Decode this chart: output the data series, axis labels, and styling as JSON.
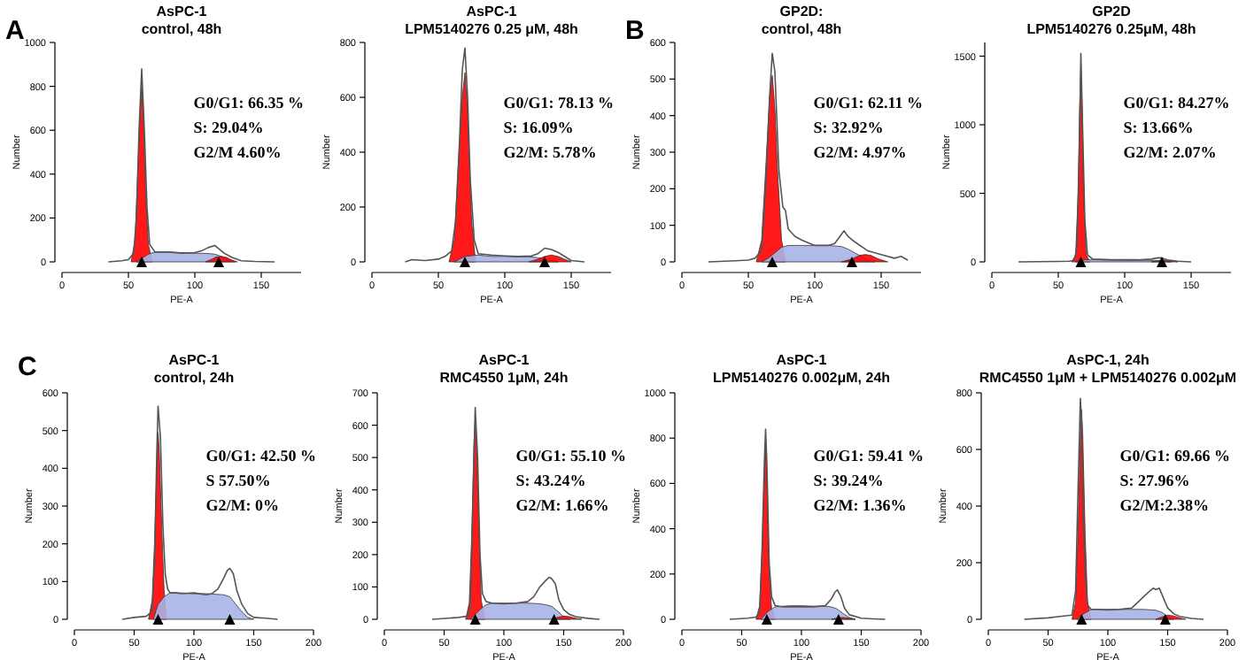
{
  "chart_data": [
    {
      "type": "area",
      "title": "AsPC-1",
      "subtitle": "control, 48h",
      "xlabel": "PE-A",
      "ylabel": "Number",
      "xlim": [
        0,
        180
      ],
      "xticks": [
        0,
        50,
        100,
        150
      ],
      "ylim": [
        0,
        1000
      ],
      "yticks": [
        0,
        200,
        400,
        600,
        800,
        1000
      ],
      "annotations": [
        "A",
        "G0/G1: 66.35 %",
        "S: 29.04%",
        "G2/M 4.60%"
      ],
      "series": [
        {
          "type": "line",
          "color": "#555555",
          "x": [
            35,
            45,
            50,
            54,
            56,
            58,
            60,
            62,
            64,
            66,
            70,
            80,
            90,
            100,
            105,
            110,
            115,
            118,
            122,
            128,
            135,
            145,
            160
          ],
          "values": [
            0,
            5,
            10,
            40,
            200,
            600,
            880,
            600,
            250,
            80,
            45,
            45,
            40,
            42,
            50,
            65,
            75,
            60,
            40,
            20,
            5,
            2,
            0
          ]
        },
        {
          "color": "#ff0000",
          "x": [
            52,
            55,
            57,
            59,
            60,
            61,
            63,
            65,
            68
          ],
          "values": [
            0,
            100,
            400,
            700,
            800,
            700,
            300,
            80,
            0
          ]
        },
        {
          "color": "#a8b4e8",
          "x": [
            56,
            60,
            65,
            70,
            80,
            90,
            100,
            110,
            115,
            120,
            125,
            130
          ],
          "values": [
            0,
            15,
            35,
            45,
            45,
            42,
            40,
            38,
            35,
            25,
            10,
            0
          ]
        },
        {
          "color": "#ff0000",
          "x": [
            108,
            112,
            116,
            120,
            124,
            128,
            132
          ],
          "values": [
            0,
            10,
            22,
            25,
            20,
            8,
            0
          ]
        },
        {
          "type": "scatter",
          "marker": "triangle",
          "color": "#000000",
          "x": [
            60,
            118
          ],
          "values": [
            0,
            0
          ]
        }
      ]
    },
    {
      "type": "area",
      "title": "AsPC-1",
      "subtitle": "LPM5140276  0.25 μM, 48h",
      "xlabel": "PE-A",
      "ylabel": "Number",
      "xlim": [
        0,
        180
      ],
      "xticks": [
        0,
        50,
        100,
        150
      ],
      "ylim": [
        0,
        800
      ],
      "yticks": [
        0,
        200,
        400,
        600,
        800
      ],
      "annotations": [
        "G0/G1: 78.13 %",
        "S: 16.09%",
        "G2/M: 5.78%"
      ],
      "series": [
        {
          "type": "line",
          "color": "#555555",
          "x": [
            25,
            30,
            40,
            50,
            55,
            60,
            63,
            66,
            68,
            70,
            72,
            74,
            77,
            80,
            90,
            100,
            110,
            120,
            125,
            130,
            135,
            140,
            145,
            150,
            160
          ],
          "values": [
            0,
            8,
            5,
            10,
            20,
            40,
            150,
            450,
            700,
            780,
            600,
            300,
            80,
            30,
            25,
            22,
            20,
            22,
            30,
            50,
            45,
            35,
            20,
            5,
            0
          ]
        },
        {
          "color": "#ff0000",
          "x": [
            58,
            62,
            65,
            68,
            70,
            72,
            75,
            78
          ],
          "values": [
            0,
            80,
            350,
            600,
            690,
            550,
            150,
            0
          ]
        },
        {
          "color": "#a8b4e8",
          "x": [
            62,
            70,
            80,
            90,
            100,
            110,
            120,
            125,
            130,
            135,
            140
          ],
          "values": [
            0,
            20,
            25,
            20,
            20,
            18,
            18,
            15,
            10,
            5,
            0
          ]
        },
        {
          "color": "#ff0000",
          "x": [
            118,
            125,
            130,
            135,
            140,
            145,
            150
          ],
          "values": [
            0,
            10,
            20,
            25,
            20,
            10,
            0
          ]
        },
        {
          "type": "scatter",
          "marker": "triangle",
          "color": "#000000",
          "x": [
            70,
            130
          ],
          "values": [
            0,
            0
          ]
        }
      ]
    },
    {
      "type": "area",
      "title": "GP2D:",
      "subtitle": "control, 48h",
      "xlabel": "PE-A",
      "ylabel": "Number",
      "xlim": [
        0,
        180
      ],
      "xticks": [
        0,
        50,
        100,
        150
      ],
      "ylim": [
        0,
        600
      ],
      "yticks": [
        0,
        100,
        200,
        300,
        400,
        500,
        600
      ],
      "annotations": [
        "B",
        "G0/G1: 62.11 %",
        "S: 32.92%",
        "G2/M: 4.97%"
      ],
      "series": [
        {
          "type": "line",
          "color": "#555555",
          "x": [
            20,
            40,
            50,
            55,
            60,
            63,
            66,
            68,
            70,
            73,
            76,
            78,
            80,
            85,
            90,
            100,
            110,
            115,
            120,
            122,
            125,
            130,
            140,
            150,
            160,
            165,
            170
          ],
          "values": [
            0,
            3,
            5,
            10,
            30,
            200,
            450,
            570,
            520,
            250,
            150,
            140,
            90,
            70,
            60,
            45,
            45,
            50,
            75,
            85,
            70,
            55,
            30,
            20,
            10,
            15,
            5
          ]
        },
        {
          "color": "#ff0000",
          "x": [
            56,
            60,
            63,
            66,
            68,
            70,
            72,
            75,
            78
          ],
          "values": [
            0,
            60,
            250,
            450,
            510,
            420,
            250,
            60,
            0
          ]
        },
        {
          "color": "#a8b4e8",
          "x": [
            60,
            65,
            70,
            75,
            80,
            90,
            100,
            110,
            120,
            125,
            130,
            135,
            140,
            145
          ],
          "values": [
            0,
            10,
            25,
            40,
            45,
            45,
            45,
            45,
            42,
            35,
            25,
            15,
            5,
            0
          ]
        },
        {
          "color": "#ff0000",
          "x": [
            120,
            128,
            134,
            138,
            142,
            148,
            155
          ],
          "values": [
            0,
            8,
            18,
            20,
            18,
            8,
            0
          ]
        },
        {
          "type": "scatter",
          "marker": "triangle",
          "color": "#000000",
          "x": [
            68,
            128
          ],
          "values": [
            0,
            0
          ]
        }
      ]
    },
    {
      "type": "area",
      "title": "GP2D",
      "subtitle": "LPM5140276  0.25μM, 48h",
      "xlabel": "PE-A",
      "ylabel": "Number",
      "xlim": [
        0,
        180
      ],
      "xticks": [
        0,
        50,
        100,
        150
      ],
      "ylim": [
        0,
        1600
      ],
      "yticks": [
        0,
        500,
        1000,
        1500
      ],
      "annotations": [
        "G0/G1: 84.27%",
        "S: 13.66%",
        "G2/M: 2.07%"
      ],
      "series": [
        {
          "type": "line",
          "color": "#555555",
          "x": [
            20,
            50,
            58,
            62,
            64,
            66,
            67,
            68,
            70,
            72,
            76,
            90,
            110,
            120,
            125,
            128,
            132,
            140,
            150
          ],
          "values": [
            0,
            3,
            5,
            10,
            100,
            900,
            1520,
            1100,
            300,
            50,
            20,
            15,
            15,
            20,
            30,
            28,
            15,
            5,
            0
          ]
        },
        {
          "color": "#ff0000",
          "x": [
            60,
            63,
            65,
            66,
            67,
            68,
            69,
            71,
            74
          ],
          "values": [
            0,
            50,
            500,
            1100,
            1450,
            1100,
            500,
            50,
            0
          ]
        },
        {
          "color": "#a8b4e8",
          "x": [
            63,
            70,
            80,
            100,
            115,
            125,
            130,
            135
          ],
          "values": [
            0,
            15,
            15,
            12,
            12,
            10,
            5,
            0
          ]
        },
        {
          "color": "#ff0000",
          "x": [
            120,
            125,
            130,
            135,
            140
          ],
          "values": [
            0,
            8,
            12,
            8,
            0
          ]
        },
        {
          "type": "scatter",
          "marker": "triangle",
          "color": "#000000",
          "x": [
            67,
            128
          ],
          "values": [
            0,
            0
          ]
        }
      ]
    },
    {
      "type": "area",
      "title": "AsPC-1",
      "subtitle": "control, 24h",
      "xlabel": "PE-A",
      "ylabel": "Number",
      "xlim": [
        0,
        200
      ],
      "xticks": [
        0,
        50,
        100,
        150,
        200
      ],
      "ylim": [
        0,
        600
      ],
      "yticks": [
        0,
        100,
        200,
        300,
        400,
        500,
        600
      ],
      "annotations": [
        "C",
        "G0/G1: 42.50 %",
        "S 57.50%",
        "G2/M: 0%"
      ],
      "series": [
        {
          "type": "line",
          "color": "#555555",
          "x": [
            40,
            50,
            60,
            65,
            67,
            69,
            70,
            72,
            74,
            76,
            78,
            80,
            85,
            90,
            100,
            110,
            115,
            120,
            125,
            128,
            130,
            133,
            136,
            140,
            145,
            150,
            160,
            170
          ],
          "values": [
            0,
            5,
            8,
            20,
            150,
            450,
            565,
            480,
            250,
            120,
            80,
            70,
            70,
            68,
            70,
            65,
            68,
            80,
            110,
            130,
            135,
            120,
            75,
            40,
            15,
            5,
            3,
            0
          ]
        },
        {
          "color": "#ff0000",
          "x": [
            62,
            65,
            67,
            69,
            70,
            71,
            73,
            75,
            77
          ],
          "values": [
            0,
            50,
            200,
            400,
            495,
            450,
            250,
            80,
            0
          ]
        },
        {
          "color": "#a8b4e8",
          "x": [
            66,
            70,
            75,
            80,
            90,
            100,
            110,
            120,
            125,
            130,
            135,
            140,
            145,
            150
          ],
          "values": [
            0,
            40,
            60,
            70,
            70,
            68,
            68,
            66,
            65,
            60,
            40,
            20,
            5,
            0
          ]
        },
        {
          "type": "scatter",
          "marker": "triangle",
          "color": "#000000",
          "x": [
            70,
            130
          ],
          "values": [
            0,
            0
          ]
        }
      ]
    },
    {
      "type": "area",
      "title": "AsPC-1",
      "subtitle": "RMC4550 1μM, 24h",
      "xlabel": "PE-A",
      "ylabel": "Number",
      "xlim": [
        0,
        200
      ],
      "xticks": [
        0,
        50,
        100,
        150,
        200
      ],
      "ylim": [
        0,
        700
      ],
      "yticks": [
        0,
        100,
        200,
        300,
        400,
        500,
        600,
        700
      ],
      "annotations": [
        "G0/G1: 55.10 %",
        "S: 43.24%",
        "G2/M: 1.66%"
      ],
      "series": [
        {
          "type": "line",
          "color": "#555555",
          "x": [
            40,
            60,
            70,
            72,
            74,
            76,
            78,
            80,
            82,
            85,
            90,
            100,
            110,
            120,
            125,
            130,
            135,
            138,
            140,
            143,
            146,
            150,
            155,
            160,
            170,
            180
          ],
          "values": [
            0,
            5,
            10,
            50,
            350,
            655,
            500,
            200,
            80,
            55,
            50,
            48,
            50,
            55,
            70,
            100,
            120,
            130,
            125,
            110,
            60,
            30,
            15,
            8,
            3,
            0
          ]
        },
        {
          "color": "#ff0000",
          "x": [
            68,
            71,
            73,
            75,
            76,
            77,
            79,
            81,
            84
          ],
          "values": [
            0,
            50,
            250,
            550,
            620,
            560,
            300,
            60,
            0
          ]
        },
        {
          "color": "#a8b4e8",
          "x": [
            72,
            80,
            85,
            90,
            100,
            110,
            120,
            130,
            135,
            140,
            145,
            150,
            155
          ],
          "values": [
            0,
            30,
            45,
            50,
            50,
            50,
            50,
            48,
            45,
            40,
            25,
            8,
            0
          ]
        },
        {
          "color": "#ff0000",
          "x": [
            140,
            145,
            150,
            155,
            160,
            165
          ],
          "values": [
            0,
            6,
            10,
            8,
            3,
            0
          ]
        },
        {
          "type": "scatter",
          "marker": "triangle",
          "color": "#000000",
          "x": [
            76,
            142
          ],
          "values": [
            0,
            0
          ]
        }
      ]
    },
    {
      "type": "area",
      "title": "AsPC-1",
      "subtitle": "LPM5140276  0.002μM, 24h",
      "xlabel": "PE-A",
      "ylabel": "Number",
      "xlim": [
        0,
        200
      ],
      "xticks": [
        0,
        50,
        100,
        150,
        200
      ],
      "ylim": [
        0,
        1000
      ],
      "yticks": [
        0,
        200,
        400,
        600,
        800,
        1000
      ],
      "annotations": [
        "G0/G1: 59.41 %",
        "S: 39.24%",
        "G2/M: 1.36%"
      ],
      "series": [
        {
          "type": "line",
          "color": "#555555",
          "x": [
            40,
            55,
            62,
            65,
            67,
            69,
            70,
            71,
            73,
            75,
            78,
            85,
            100,
            110,
            120,
            125,
            128,
            130,
            133,
            136,
            140,
            150,
            160,
            170
          ],
          "values": [
            0,
            5,
            10,
            30,
            300,
            700,
            840,
            700,
            250,
            100,
            60,
            55,
            55,
            55,
            60,
            90,
            120,
            130,
            100,
            50,
            20,
            5,
            2,
            0
          ]
        },
        {
          "color": "#ff0000",
          "x": [
            62,
            65,
            67,
            69,
            70,
            71,
            73,
            75,
            78
          ],
          "values": [
            0,
            60,
            300,
            650,
            770,
            650,
            200,
            50,
            0
          ]
        },
        {
          "color": "#a8b4e8",
          "x": [
            66,
            72,
            78,
            90,
            100,
            110,
            120,
            125,
            130,
            135,
            140,
            145
          ],
          "values": [
            0,
            35,
            55,
            60,
            60,
            58,
            58,
            55,
            45,
            25,
            8,
            0
          ]
        },
        {
          "color": "#ff0000",
          "x": [
            125,
            130,
            135,
            140,
            145
          ],
          "values": [
            0,
            6,
            8,
            5,
            0
          ]
        },
        {
          "type": "scatter",
          "marker": "triangle",
          "color": "#000000",
          "x": [
            71,
            131
          ],
          "values": [
            0,
            0
          ]
        }
      ]
    },
    {
      "type": "area",
      "title": "AsPC-1, 24h",
      "subtitle": "RMC4550 1μM + LPM5140276  0.002μM",
      "xlabel": "PE-A",
      "ylabel": "Number",
      "xlim": [
        0,
        200
      ],
      "xticks": [
        0,
        50,
        100,
        150,
        200
      ],
      "ylim": [
        0,
        800
      ],
      "yticks": [
        0,
        200,
        400,
        600,
        800
      ],
      "annotations": [
        "G0/G1: 69.66 %",
        "S: 27.96%",
        "G2/M:2.38%"
      ],
      "series": [
        {
          "type": "line",
          "color": "#555555",
          "x": [
            30,
            50,
            60,
            70,
            73,
            75,
            77,
            78,
            79,
            81,
            83,
            86,
            90,
            100,
            110,
            120,
            125,
            130,
            135,
            138,
            140,
            143,
            146,
            150,
            155,
            160,
            170,
            180
          ],
          "values": [
            0,
            5,
            10,
            15,
            100,
            450,
            780,
            700,
            400,
            150,
            50,
            35,
            35,
            33,
            35,
            40,
            60,
            80,
            100,
            110,
            105,
            110,
            80,
            40,
            20,
            10,
            3,
            0
          ]
        },
        {
          "color": "#ff0000",
          "x": [
            70,
            73,
            75,
            77,
            78,
            79,
            81,
            83,
            86
          ],
          "values": [
            0,
            60,
            300,
            650,
            740,
            650,
            300,
            60,
            0
          ]
        },
        {
          "color": "#a8b4e8",
          "x": [
            74,
            80,
            86,
            100,
            110,
            120,
            130,
            140,
            145,
            150,
            155
          ],
          "values": [
            0,
            20,
            35,
            35,
            35,
            35,
            35,
            32,
            25,
            10,
            0
          ]
        },
        {
          "color": "#ff0000",
          "x": [
            140,
            145,
            150,
            155,
            160,
            165
          ],
          "values": [
            0,
            8,
            15,
            12,
            5,
            0
          ]
        },
        {
          "type": "scatter",
          "marker": "triangle",
          "color": "#000000",
          "x": [
            78,
            148
          ],
          "values": [
            0,
            0
          ]
        }
      ]
    }
  ]
}
